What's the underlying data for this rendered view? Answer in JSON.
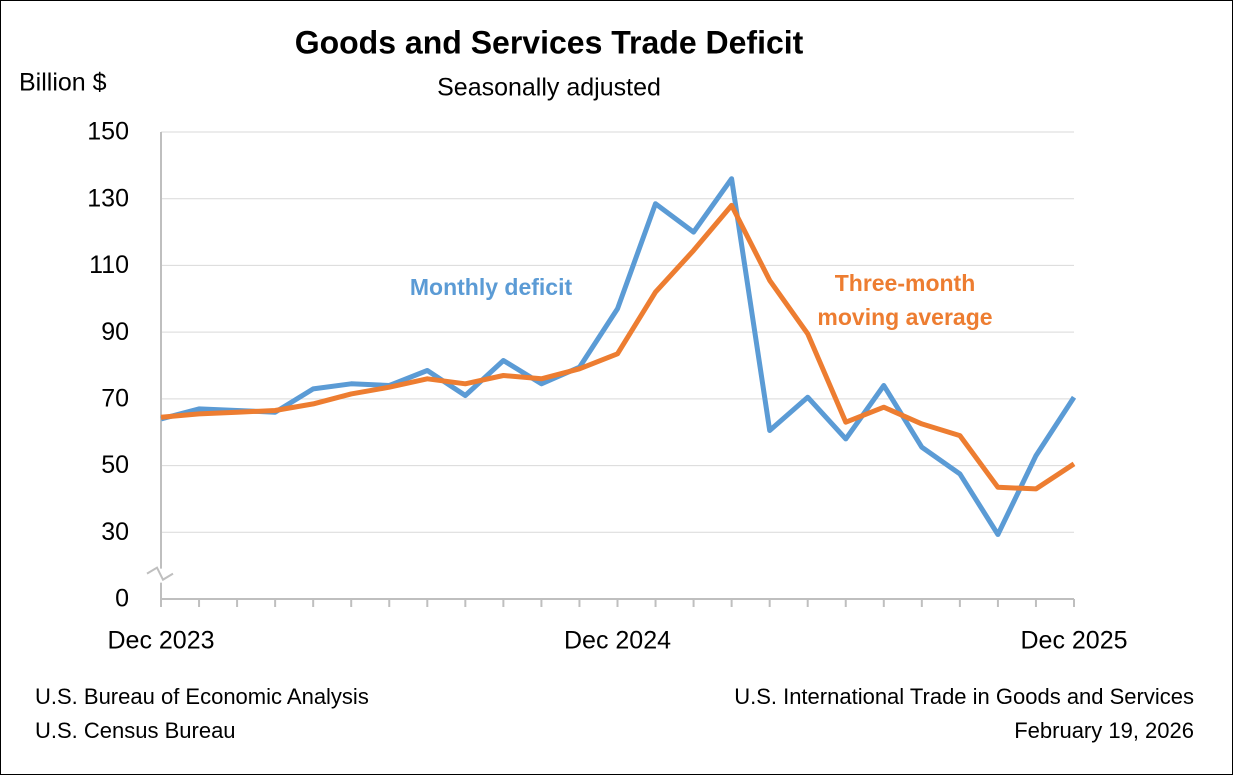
{
  "chart_data": {
    "type": "line",
    "title": "Goods and Services Trade Deficit",
    "subtitle": "Seasonally adjusted",
    "y_label": "Billion $",
    "categories": [
      "Dec 2023",
      null,
      null,
      null,
      null,
      null,
      null,
      null,
      null,
      null,
      null,
      null,
      "Dec 2024",
      null,
      null,
      null,
      null,
      null,
      null,
      null,
      null,
      null,
      null,
      null,
      "Dec 2025"
    ],
    "series": [
      {
        "name": "Monthly deficit",
        "color": "#5b9bd5",
        "values": [
          64,
          67,
          66.5,
          66,
          73,
          74.5,
          74,
          78.5,
          71,
          81.5,
          74.5,
          79.5,
          97,
          128.5,
          120,
          136,
          60.5,
          70.5,
          58,
          74,
          55.5,
          47.5,
          29,
          53,
          70.5
        ]
      },
      {
        "name": "Three-month moving average",
        "color": "#ed7d31",
        "values": [
          64.5,
          65.5,
          66,
          66.5,
          68.5,
          71.5,
          73.5,
          76,
          74.5,
          77,
          76,
          79,
          83.5,
          102,
          114.5,
          128,
          105.5,
          89.5,
          63,
          67.5,
          62.5,
          59,
          43.5,
          43,
          50.5
        ]
      }
    ],
    "ylim": [
      0,
      150
    ],
    "yticks": [
      0,
      30,
      50,
      70,
      90,
      110,
      130,
      150
    ],
    "y_axis_break": true,
    "grid": true,
    "sources": [
      "U.S. Bureau of Economic Analysis",
      "U.S. Census Bureau"
    ],
    "release": [
      "U.S. International Trade in Goods and Services",
      "February 19, 2026"
    ]
  }
}
